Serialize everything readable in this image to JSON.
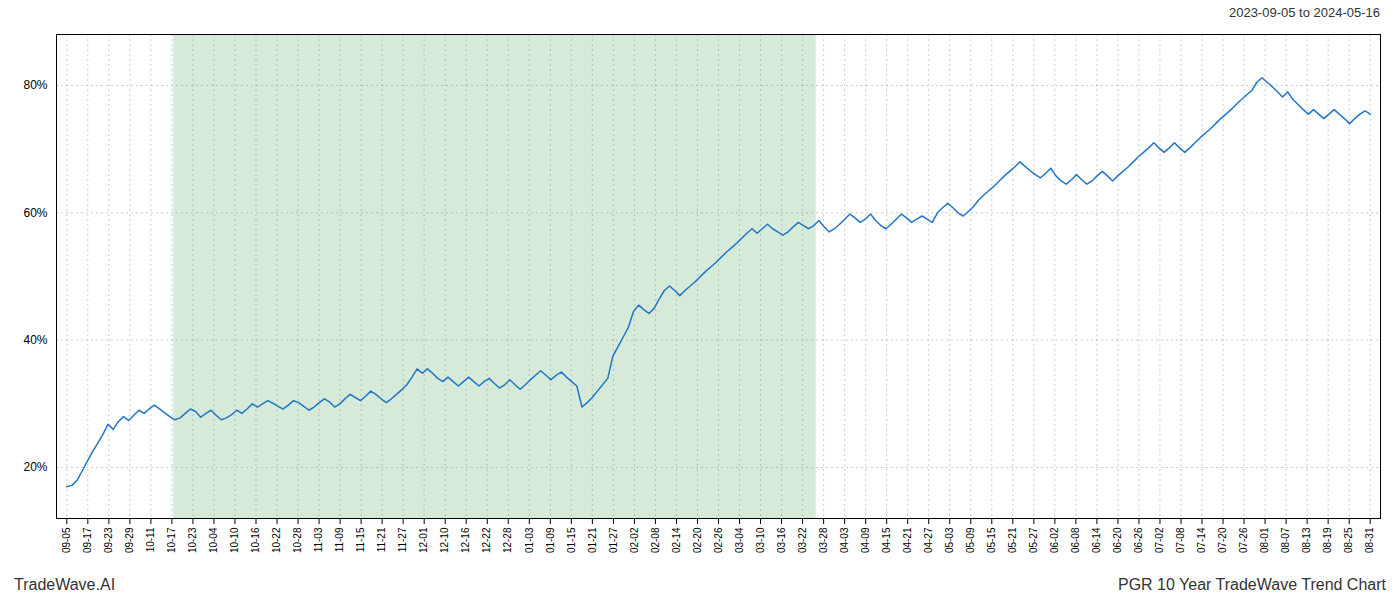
{
  "chart_data": {
    "type": "line",
    "title": "PGR 10 Year TradeWave Trend Chart",
    "subtitle": "2023-09-05 to 2024-05-16",
    "annotations": [
      "TradeWave.AI"
    ],
    "color": "#2176c7",
    "grid": true,
    "shaded_region": {
      "start": 20.746,
      "end": 145.475,
      "color": "#d5ead9"
    },
    "xlim": [
      -2,
      255
    ],
    "xticks": [
      {
        "value": 0,
        "label": "09-05"
      },
      {
        "value": 4.080645,
        "label": "09-17"
      },
      {
        "value": 8.16129,
        "label": "09-23"
      },
      {
        "value": 12.241935,
        "label": "09-29"
      },
      {
        "value": 16.322581,
        "label": "10-11"
      },
      {
        "value": 20.403226,
        "label": "10-17"
      },
      {
        "value": 24.483871,
        "label": "10-23"
      },
      {
        "value": 28.564516,
        "label": "10-04"
      },
      {
        "value": 32.645161,
        "label": "10-10"
      },
      {
        "value": 36.725806,
        "label": "10-16"
      },
      {
        "value": 40.806452,
        "label": "10-22"
      },
      {
        "value": 44.887097,
        "label": "10-28"
      },
      {
        "value": 48.967742,
        "label": "11-03"
      },
      {
        "value": 53.048387,
        "label": "11-09"
      },
      {
        "value": 57.129032,
        "label": "11-15"
      },
      {
        "value": 61.209677,
        "label": "11-21"
      },
      {
        "value": 65.290323,
        "label": "11-27"
      },
      {
        "value": 69.370968,
        "label": "12-01"
      },
      {
        "value": 73.451613,
        "label": "12-10"
      },
      {
        "value": 77.532258,
        "label": "12-16"
      },
      {
        "value": 81.612903,
        "label": "12-22"
      },
      {
        "value": 85.693548,
        "label": "12-28"
      },
      {
        "value": 89.774194,
        "label": "01-03"
      },
      {
        "value": 93.854839,
        "label": "01-09"
      },
      {
        "value": 97.935484,
        "label": "01-15"
      },
      {
        "value": 102.016129,
        "label": "01-21"
      },
      {
        "value": 106.096774,
        "label": "01-27"
      },
      {
        "value": 110.177419,
        "label": "02-02"
      },
      {
        "value": 114.258065,
        "label": "02-08"
      },
      {
        "value": 118.33871,
        "label": "02-14"
      },
      {
        "value": 122.419355,
        "label": "02-20"
      },
      {
        "value": 126.5,
        "label": "02-26"
      },
      {
        "value": 130.580645,
        "label": "03-04"
      },
      {
        "value": 134.66129,
        "label": "03-10"
      },
      {
        "value": 138.741935,
        "label": "03-16"
      },
      {
        "value": 142.822581,
        "label": "03-22"
      },
      {
        "value": 146.903226,
        "label": "03-28"
      },
      {
        "value": 150.983871,
        "label": "04-03"
      },
      {
        "value": 155.064516,
        "label": "04-09"
      },
      {
        "value": 159.145161,
        "label": "04-15"
      },
      {
        "value": 163.225806,
        "label": "04-21"
      },
      {
        "value": 167.306452,
        "label": "04-27"
      },
      {
        "value": 171.387097,
        "label": "05-03"
      },
      {
        "value": 175.467742,
        "label": "05-09"
      },
      {
        "value": 179.548387,
        "label": "05-15"
      },
      {
        "value": 183.629032,
        "label": "05-21"
      },
      {
        "value": 187.709677,
        "label": "05-27"
      },
      {
        "value": 191.790323,
        "label": "06-02"
      },
      {
        "value": 195.870968,
        "label": "06-08"
      },
      {
        "value": 199.951613,
        "label": "06-14"
      },
      {
        "value": 204.032258,
        "label": "06-20"
      },
      {
        "value": 208.112903,
        "label": "06-26"
      },
      {
        "value": 212.193548,
        "label": "07-02"
      },
      {
        "value": 216.274194,
        "label": "07-08"
      },
      {
        "value": 220.354839,
        "label": "07-14"
      },
      {
        "value": 224.435484,
        "label": "07-20"
      },
      {
        "value": 228.516129,
        "label": "07-26"
      },
      {
        "value": 232.596774,
        "label": "08-01"
      },
      {
        "value": 236.677419,
        "label": "08-07"
      },
      {
        "value": 240.758065,
        "label": "08-13"
      },
      {
        "value": 244.83871,
        "label": "08-19"
      },
      {
        "value": 248.919355,
        "label": "08-25"
      },
      {
        "value": 253,
        "label": "08-31"
      }
    ],
    "ylim": [
      12,
      88
    ],
    "yticks": [
      {
        "value": 20,
        "label": "20%"
      },
      {
        "value": 40,
        "label": "40%"
      },
      {
        "value": 60,
        "label": "60%"
      },
      {
        "value": 80,
        "label": "80%"
      }
    ],
    "x": [
      0,
      1,
      2,
      3,
      4,
      5,
      6,
      7,
      8,
      9,
      10,
      11,
      12,
      13,
      14,
      15,
      16,
      17,
      18,
      19,
      20,
      21,
      22,
      23,
      24,
      25,
      26,
      27,
      28,
      29,
      30,
      31,
      32,
      33,
      34,
      35,
      36,
      37,
      38,
      39,
      40,
      41,
      42,
      43,
      44,
      45,
      46,
      47,
      48,
      49,
      50,
      51,
      52,
      53,
      54,
      55,
      56,
      57,
      58,
      59,
      60,
      61,
      62,
      63,
      64,
      65,
      66,
      67,
      68,
      69,
      70,
      71,
      72,
      73,
      74,
      75,
      76,
      77,
      78,
      79,
      80,
      81,
      82,
      83,
      84,
      85,
      86,
      87,
      88,
      89,
      90,
      91,
      92,
      93,
      94,
      95,
      96,
      97,
      98,
      99,
      100,
      101,
      102,
      103,
      104,
      105,
      106,
      107,
      108,
      109,
      110,
      111,
      112,
      113,
      114,
      115,
      116,
      117,
      118,
      119,
      120,
      121,
      122,
      123,
      124,
      125,
      126,
      127,
      128,
      129,
      130,
      131,
      132,
      133,
      134,
      135,
      136,
      137,
      138,
      139,
      140,
      141,
      142,
      143,
      144,
      145,
      146,
      147,
      148,
      149,
      150,
      151,
      152,
      153,
      154,
      155,
      156,
      157,
      158,
      159,
      160,
      161,
      162,
      163,
      164,
      165,
      166,
      167,
      168,
      169,
      170,
      171,
      172,
      173,
      174,
      175,
      176,
      177,
      178,
      179,
      180,
      181,
      182,
      183,
      184,
      185,
      186,
      187,
      188,
      189,
      190,
      191,
      192,
      193,
      194,
      195,
      196,
      197,
      198,
      199,
      200,
      201,
      202,
      203,
      204,
      205,
      206,
      207,
      208,
      209,
      210,
      211,
      212,
      213,
      214,
      215,
      216,
      217,
      218,
      219,
      220,
      221,
      222,
      223,
      224,
      225,
      226,
      227,
      228,
      229,
      230,
      231,
      232,
      233,
      234,
      235,
      236,
      237,
      238,
      239,
      240,
      241,
      242,
      243,
      244,
      245,
      246,
      247,
      248,
      249,
      250,
      251,
      252,
      253
    ],
    "values": [
      17.0,
      17.2,
      18.0,
      19.5,
      21.0,
      22.5,
      23.8,
      25.2,
      26.8,
      26.0,
      27.2,
      28.0,
      27.4,
      28.2,
      29.0,
      28.5,
      29.2,
      29.8,
      29.2,
      28.6,
      28.0,
      27.5,
      27.8,
      28.5,
      29.2,
      28.8,
      27.9,
      28.5,
      29.0,
      28.2,
      27.5,
      27.8,
      28.3,
      29.0,
      28.5,
      29.2,
      30.0,
      29.5,
      30.0,
      30.5,
      30.1,
      29.6,
      29.2,
      29.8,
      30.5,
      30.2,
      29.6,
      29.0,
      29.5,
      30.2,
      30.8,
      30.3,
      29.5,
      30.0,
      30.8,
      31.5,
      31.0,
      30.5,
      31.2,
      32.0,
      31.5,
      30.8,
      30.2,
      30.8,
      31.5,
      32.2,
      33.0,
      34.2,
      35.5,
      34.8,
      35.5,
      34.8,
      34.0,
      33.5,
      34.2,
      33.5,
      32.8,
      33.5,
      34.2,
      33.5,
      32.8,
      33.5,
      34.0,
      33.2,
      32.5,
      33.0,
      33.8,
      33.0,
      32.3,
      33.0,
      33.8,
      34.5,
      35.2,
      34.5,
      33.8,
      34.5,
      35.0,
      34.2,
      33.5,
      32.8,
      29.5,
      30.2,
      31.0,
      32.0,
      33.0,
      34.0,
      37.5,
      39.0,
      40.5,
      42.0,
      44.5,
      45.5,
      44.8,
      44.2,
      45.0,
      46.5,
      47.8,
      48.5,
      47.8,
      47.0,
      47.8,
      48.5,
      49.2,
      50.0,
      50.8,
      51.5,
      52.2,
      53.0,
      53.8,
      54.5,
      55.2,
      56.0,
      56.8,
      57.5,
      56.8,
      57.5,
      58.2,
      57.5,
      57.0,
      56.5,
      57.0,
      57.8,
      58.5,
      58.0,
      57.5,
      58.0,
      58.8,
      57.8,
      57.0,
      57.5,
      58.2,
      59.0,
      59.8,
      59.2,
      58.5,
      59.0,
      59.8,
      58.8,
      58.0,
      57.5,
      58.2,
      59.0,
      59.8,
      59.2,
      58.5,
      59.0,
      59.5,
      59.0,
      58.5,
      60.0,
      60.8,
      61.5,
      60.8,
      60.0,
      59.5,
      60.2,
      61.0,
      62.0,
      62.8,
      63.5,
      64.2,
      65.0,
      65.8,
      66.5,
      67.2,
      68.0,
      67.3,
      66.6,
      66.0,
      65.5,
      66.2,
      67.0,
      65.8,
      65.0,
      64.5,
      65.2,
      66.0,
      65.2,
      64.5,
      65.0,
      65.8,
      66.5,
      65.8,
      65.0,
      65.8,
      66.5,
      67.2,
      68.0,
      68.8,
      69.5,
      70.2,
      71.0,
      70.2,
      69.5,
      70.2,
      71.0,
      70.2,
      69.5,
      70.2,
      71.0,
      71.8,
      72.5,
      73.2,
      74.0,
      74.8,
      75.5,
      76.2,
      77.0,
      77.8,
      78.5,
      79.2,
      80.5,
      81.2,
      80.5,
      79.8,
      79.0,
      78.2,
      79.0,
      77.8,
      77.0,
      76.2,
      75.5,
      76.2,
      75.5,
      74.8,
      75.5,
      76.2,
      75.5,
      74.8,
      74.0,
      74.8,
      75.5,
      76.0,
      75.5
    ]
  }
}
